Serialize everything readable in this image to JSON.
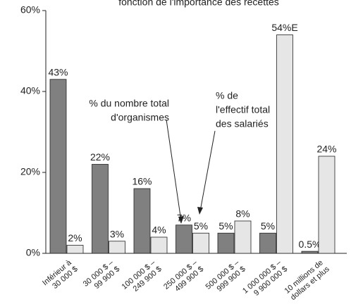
{
  "chart_data": {
    "type": "bar",
    "title": "fonction de l'importance des recettes",
    "categories": [
      [
        "Inférieur à",
        "30 000 $"
      ],
      [
        "30 000 $ –",
        "99 900 $"
      ],
      [
        "100 000 $ –",
        "249 900 $"
      ],
      [
        "250 000 $ –",
        "499 900 $"
      ],
      [
        "500 000 $ –",
        "999 900 $"
      ],
      [
        "1 000 000 $ –",
        "9 900 000 $"
      ],
      [
        "10 millions de",
        "dollars et plus"
      ]
    ],
    "series": [
      {
        "name": [
          "% du nombre total",
          "d'organismes"
        ],
        "color": "#808080",
        "values": [
          43,
          22,
          16,
          7,
          5,
          5,
          0.5
        ],
        "value_labels": [
          "43%",
          "22%",
          "16%",
          "7%",
          "5%",
          "5%",
          "0.5%"
        ]
      },
      {
        "name": [
          "% de",
          "l'effectif total",
          "des salariés"
        ],
        "color": "#e6e6e6",
        "values": [
          2,
          3,
          4,
          5,
          8,
          54,
          24
        ],
        "value_labels": [
          "2%",
          "3%",
          "4%",
          "5%",
          "8%",
          "54%E",
          "24%"
        ]
      }
    ],
    "ylim": [
      0,
      60
    ],
    "yticks": [
      {
        "value": 0,
        "label": "0%"
      },
      {
        "value": 20,
        "label": "20%"
      },
      {
        "value": 40,
        "label": "40%"
      },
      {
        "value": 60,
        "label": "60%"
      }
    ]
  }
}
